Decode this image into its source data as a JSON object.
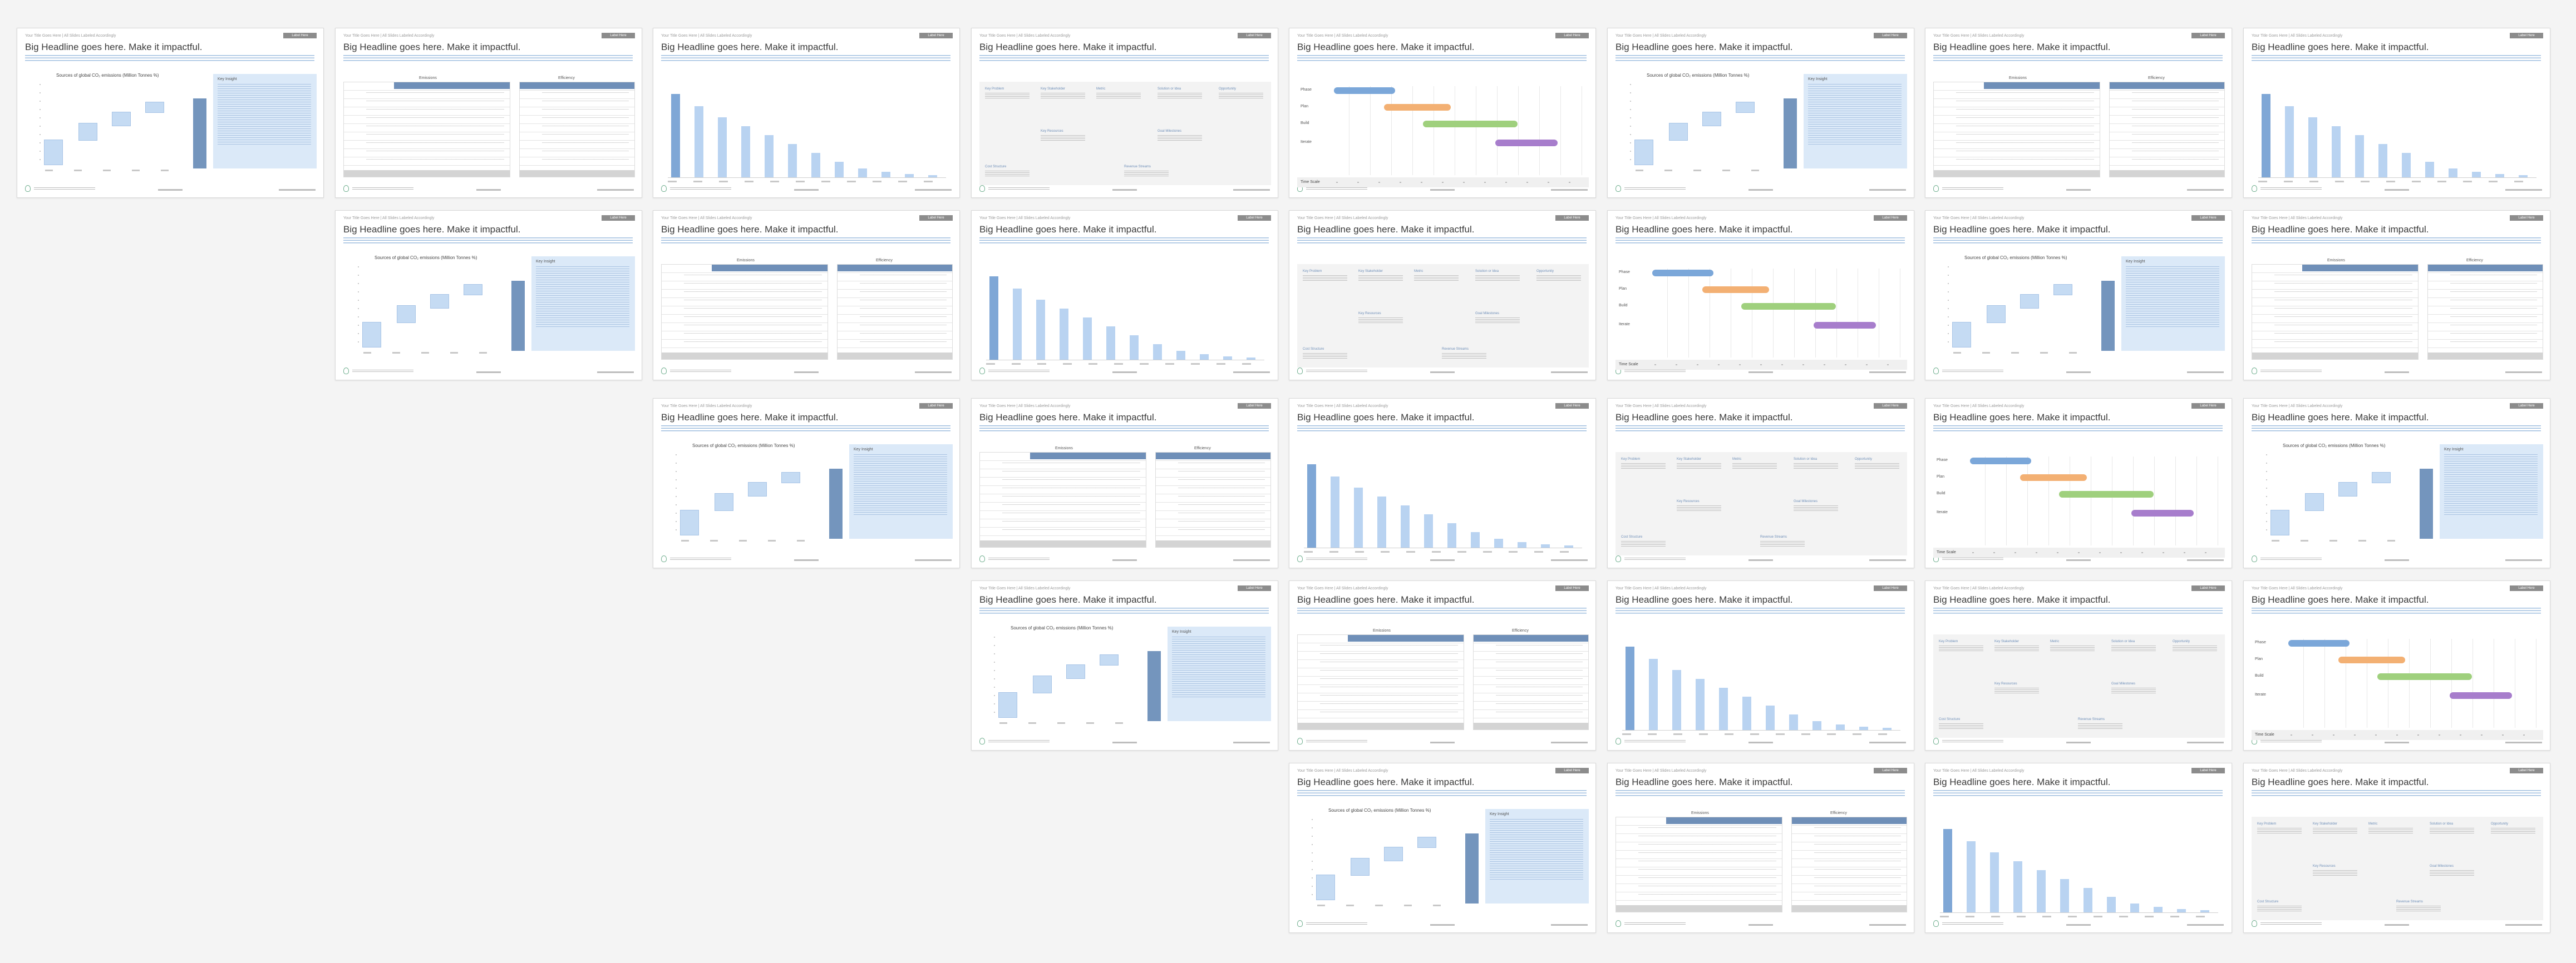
{
  "common": {
    "crumb": "Your Title Goes Here  |  All Slides Labeled Accordingly",
    "tag": "Label Here",
    "headline": "Big Headline goes here. Make it impactful."
  },
  "waterfall": {
    "title": "Sources of global CO₂ emissions (Million Tonnes %)",
    "insight_title": "Key Insight"
  },
  "tables": {
    "left_title": "Emissions",
    "right_title": "Efficiency"
  },
  "grid": {
    "labels": [
      "Key Problem",
      "Key Stakeholder",
      "Metric",
      "Solution or Idea",
      "Opportunity",
      "Key Resources",
      "Cost Structure",
      "Revenue Streams",
      "Goal Milestones"
    ]
  },
  "gantt": {
    "rows": [
      "Phase",
      "Plan",
      "Build",
      "Iterate"
    ],
    "foot_label": "Time Scale",
    "colors": [
      "#7ba7d9",
      "#f3b073",
      "#9fd07d",
      "#a77dcc"
    ]
  },
  "colors": {
    "accent": "#6f8fb8",
    "light_blue": "#c5dbf3",
    "total": "#7495bd"
  }
}
